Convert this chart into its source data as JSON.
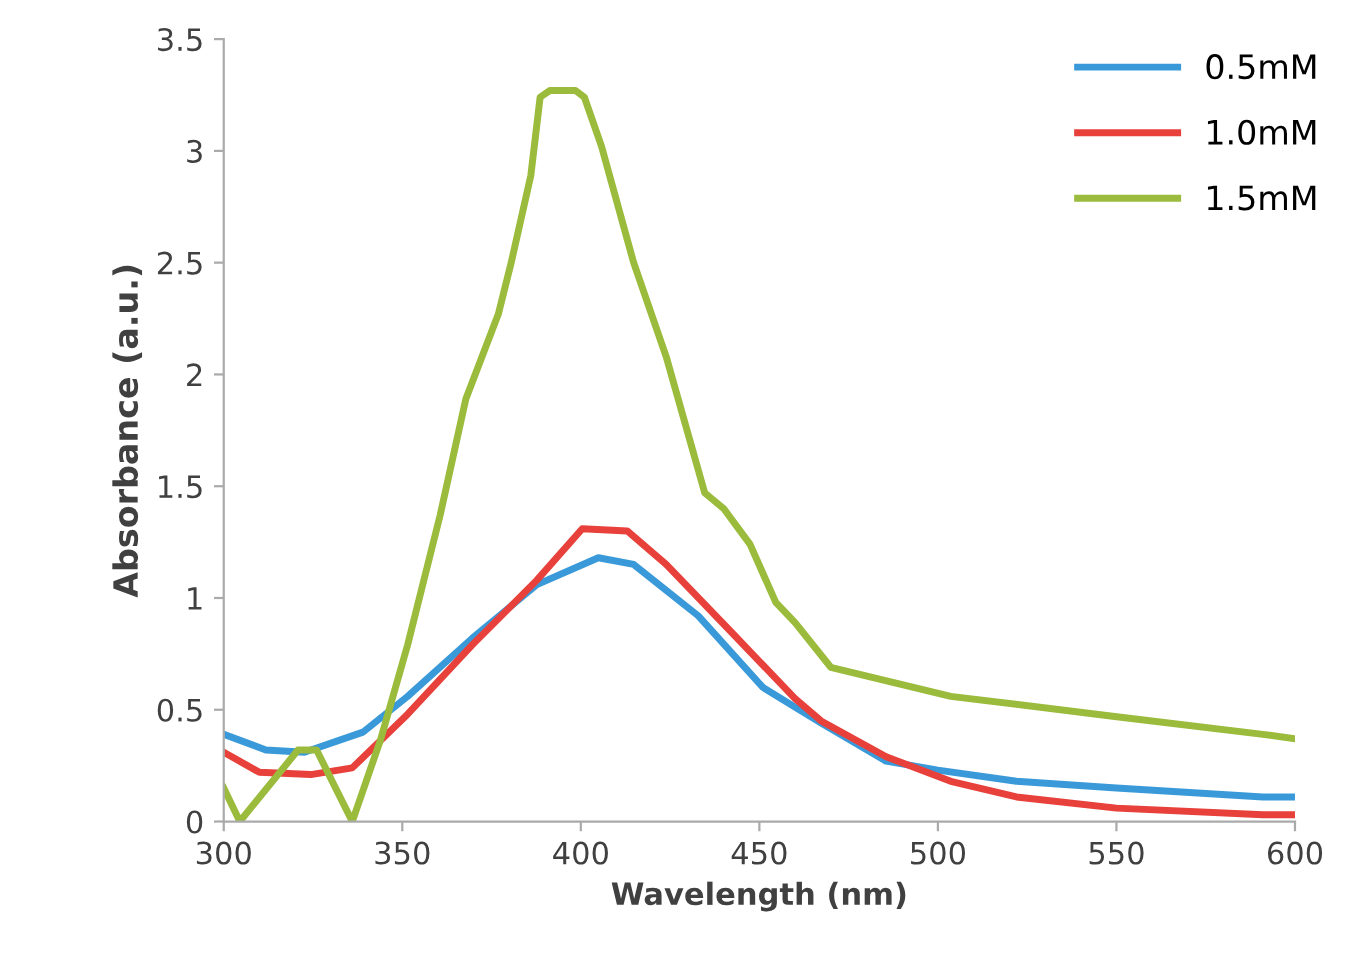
{
  "chart_data": {
    "type": "line",
    "xlabel": "Wavelength (nm)",
    "ylabel": "Absorbance (a.u.)",
    "xlim": [
      300,
      600
    ],
    "xticks": [
      300,
      350,
      400,
      450,
      500,
      550,
      600
    ],
    "ylim": [
      0,
      3.5
    ],
    "yticks": [
      0,
      0.5,
      1,
      1.5,
      2,
      2.5,
      3,
      3.5
    ],
    "grid": false,
    "legend": "top right",
    "marker": "none",
    "line_style": "solid",
    "series": [
      {
        "name": "0.5mM",
        "color": "#3a9ad9",
        "x": [
          300,
          311.8,
          322.6,
          339,
          351.5,
          369.6,
          387.7,
          404.9,
          414.8,
          432.9,
          451,
          467.3,
          485.5,
          500,
          522,
          550,
          591,
          600
        ],
        "values": [
          0.39,
          0.32,
          0.31,
          0.4,
          0.56,
          0.82,
          1.06,
          1.18,
          1.15,
          0.92,
          0.6,
          0.44,
          0.27,
          0.23,
          0.18,
          0.15,
          0.11,
          0.11
        ]
      },
      {
        "name": "1.0mM",
        "color": "#e8403a",
        "x": [
          300,
          310,
          324.4,
          336,
          351.5,
          369.6,
          387.7,
          400.4,
          413,
          423.9,
          442,
          460,
          467.3,
          485.5,
          503.6,
          522,
          550,
          591,
          600
        ],
        "values": [
          0.31,
          0.22,
          0.21,
          0.24,
          0.48,
          0.79,
          1.08,
          1.31,
          1.3,
          1.15,
          0.85,
          0.55,
          0.45,
          0.29,
          0.18,
          0.11,
          0.06,
          0.03,
          0.03
        ]
      },
      {
        "name": "1.5mM",
        "color": "#9bbb3c",
        "x": [
          300,
          304.5,
          320.8,
          326,
          336,
          344,
          351.5,
          360.6,
          367.8,
          376.9,
          380.5,
          386,
          388.6,
          391.3,
          398.5,
          401,
          405.8,
          414.8,
          423.9,
          434.7,
          440,
          447.4,
          454.6,
          460,
          470,
          503.6,
          549.5,
          591,
          600
        ],
        "values": [
          0.15,
          0.0,
          0.32,
          0.32,
          0.0,
          0.37,
          0.79,
          1.37,
          1.89,
          2.27,
          2.5,
          2.89,
          3.24,
          3.27,
          3.27,
          3.24,
          3.02,
          2.5,
          2.08,
          1.47,
          1.4,
          1.24,
          0.98,
          0.89,
          0.69,
          0.56,
          0.47,
          0.39,
          0.37
        ]
      }
    ]
  }
}
